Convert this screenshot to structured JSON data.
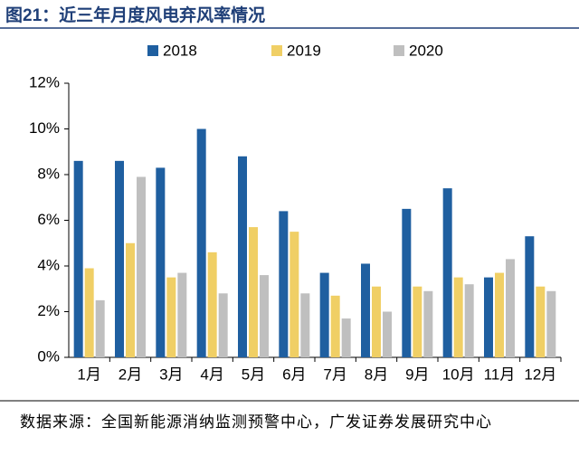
{
  "chart_data": {
    "type": "bar",
    "title": "图21：近三年月度风电弃风率情况",
    "source": "数据来源：全国新能源消纳监测预警中心，广发证券发展研究中心",
    "categories": [
      "1月",
      "2月",
      "3月",
      "4月",
      "5月",
      "6月",
      "7月",
      "8月",
      "9月",
      "10月",
      "11月",
      "12月"
    ],
    "series": [
      {
        "name": "2018",
        "color": "#1f5fa0",
        "values": [
          8.6,
          8.6,
          8.3,
          10.0,
          8.8,
          6.4,
          3.7,
          4.1,
          6.5,
          7.4,
          3.5,
          5.3
        ]
      },
      {
        "name": "2019",
        "color": "#f0cf65",
        "values": [
          3.9,
          5.0,
          3.5,
          4.6,
          5.7,
          5.5,
          2.7,
          3.1,
          3.1,
          3.5,
          3.7,
          3.1
        ]
      },
      {
        "name": "2020",
        "color": "#bfbfbf",
        "values": [
          2.5,
          7.9,
          3.7,
          2.8,
          3.6,
          2.8,
          1.7,
          2.0,
          2.9,
          3.2,
          4.3,
          2.9
        ]
      }
    ],
    "ylim": [
      0,
      12
    ],
    "yticks": [
      {
        "value": 0,
        "label": "0%"
      },
      {
        "value": 2,
        "label": "2%"
      },
      {
        "value": 4,
        "label": "4%"
      },
      {
        "value": 6,
        "label": "6%"
      },
      {
        "value": 8,
        "label": "8%"
      },
      {
        "value": 10,
        "label": "10%"
      },
      {
        "value": 12,
        "label": "12%"
      }
    ],
    "grid": false,
    "legend": "top"
  }
}
